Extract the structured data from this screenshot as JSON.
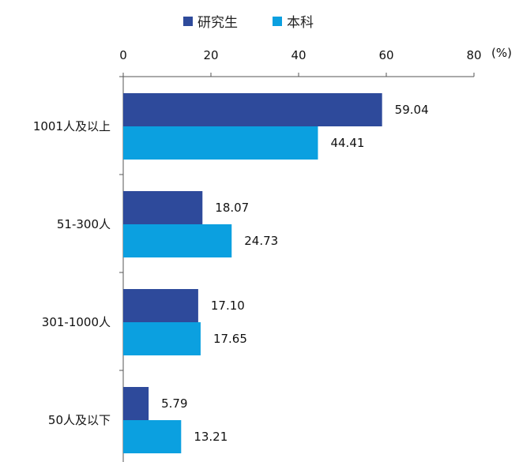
{
  "chart_data": {
    "type": "bar",
    "orientation": "horizontal",
    "categories": [
      "1001人及以上",
      "51-300人",
      "301-1000人",
      "50人及以下"
    ],
    "series": [
      {
        "name": "研究生",
        "values": [
          59.04,
          18.07,
          17.1,
          5.79
        ],
        "labels": [
          "59.04",
          "18.07",
          "17.10",
          "5.79"
        ],
        "color": "#2E4A9B"
      },
      {
        "name": "本科",
        "values": [
          44.41,
          24.73,
          17.65,
          13.21
        ],
        "labels": [
          "44.41",
          "24.73",
          "17.65",
          "13.21"
        ],
        "color": "#0BA0E0"
      }
    ],
    "xlim": [
      0,
      80
    ],
    "xticks": [
      0,
      20,
      40,
      60,
      80
    ],
    "unit_label": "(%)",
    "x_axis_position": "top",
    "legend_position": "top-center",
    "grid": false
  }
}
